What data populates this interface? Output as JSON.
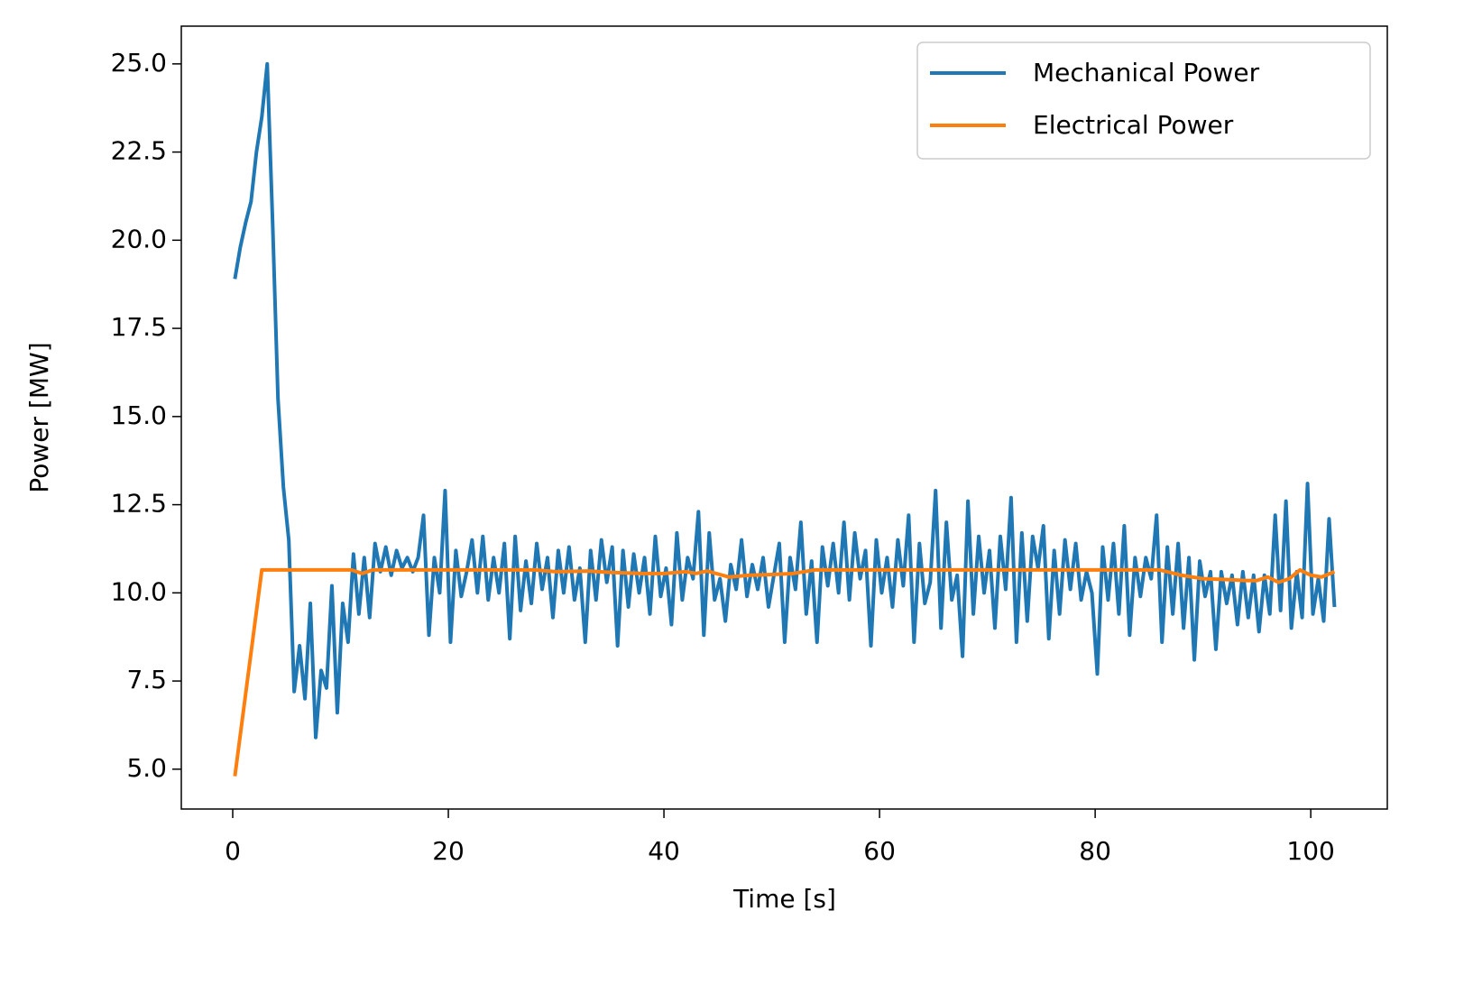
{
  "chart_data": {
    "type": "line",
    "x_label": "Time [s]",
    "y_label": "Power [MW]",
    "xlim": [
      -4.77,
      107.1
    ],
    "ylim": [
      3.87,
      26.07
    ],
    "xticks": [
      0,
      20,
      40,
      60,
      80,
      100
    ],
    "yticks": [
      {
        "value": 5,
        "label": "5.0"
      },
      7.5,
      {
        "value": 10,
        "label": "10.0"
      },
      12.5,
      {
        "value": 15,
        "label": "15.0"
      },
      17.5,
      {
        "value": 20,
        "label": "20.0"
      },
      22.5,
      {
        "value": 25,
        "label": "25.0"
      }
    ],
    "legend": "upper right",
    "series": [
      {
        "name": "Mechanical Power",
        "color": "#1f77b4",
        "x": [
          0.2,
          0.7,
          1.2,
          1.7,
          2.2,
          2.7,
          3.2,
          3.7,
          4.2,
          4.7,
          5.2,
          5.7,
          6.2,
          6.7,
          7.2,
          7.7,
          8.2,
          8.7,
          9.2,
          9.7,
          10.2,
          10.7,
          11.2,
          11.7,
          12.2,
          12.7,
          13.2,
          13.7,
          14.2,
          14.7,
          15.2,
          15.7,
          16.2,
          16.7,
          17.2,
          17.7,
          18.2,
          18.7,
          19.2,
          19.7,
          20.2,
          20.7,
          21.2,
          21.7,
          22.2,
          22.7,
          23.2,
          23.7,
          24.2,
          24.7,
          25.2,
          25.7,
          26.2,
          26.7,
          27.2,
          27.7,
          28.2,
          28.7,
          29.2,
          29.7,
          30.2,
          30.7,
          31.2,
          31.7,
          32.2,
          32.7,
          33.2,
          33.7,
          34.2,
          34.7,
          35.2,
          35.7,
          36.2,
          36.7,
          37.2,
          37.7,
          38.2,
          38.7,
          39.2,
          39.7,
          40.2,
          40.7,
          41.2,
          41.7,
          42.2,
          42.7,
          43.2,
          43.7,
          44.2,
          44.7,
          45.2,
          45.7,
          46.2,
          46.7,
          47.2,
          47.7,
          48.2,
          48.7,
          49.2,
          49.7,
          50.2,
          50.7,
          51.2,
          51.7,
          52.2,
          52.7,
          53.2,
          53.7,
          54.2,
          54.7,
          55.2,
          55.7,
          56.2,
          56.7,
          57.2,
          57.7,
          58.2,
          58.7,
          59.2,
          59.7,
          60.2,
          60.7,
          61.2,
          61.7,
          62.2,
          62.7,
          63.2,
          63.7,
          64.2,
          64.7,
          65.2,
          65.7,
          66.2,
          66.7,
          67.2,
          67.7,
          68.2,
          68.7,
          69.2,
          69.7,
          70.2,
          70.7,
          71.2,
          71.7,
          72.2,
          72.7,
          73.2,
          73.7,
          74.2,
          74.7,
          75.2,
          75.7,
          76.2,
          76.7,
          77.2,
          77.7,
          78.2,
          78.7,
          79.2,
          79.7,
          80.2,
          80.7,
          81.2,
          81.7,
          82.2,
          82.7,
          83.2,
          83.7,
          84.2,
          84.7,
          85.2,
          85.7,
          86.2,
          86.7,
          87.2,
          87.7,
          88.2,
          88.7,
          89.2,
          89.7,
          90.2,
          90.7,
          91.2,
          91.7,
          92.2,
          92.7,
          93.2,
          93.7,
          94.2,
          94.7,
          95.2,
          95.7,
          96.2,
          96.7,
          97.2,
          97.7,
          98.2,
          98.7,
          99.2,
          99.7,
          100.2,
          100.7,
          101.2,
          101.7,
          102.2
        ],
        "values": [
          18.9,
          19.8,
          20.5,
          21.1,
          22.5,
          23.5,
          25.0,
          20.5,
          15.5,
          13.0,
          11.5,
          7.2,
          8.5,
          7.0,
          9.7,
          5.9,
          7.8,
          7.3,
          10.2,
          6.6,
          9.7,
          8.6,
          11.1,
          9.4,
          11.0,
          9.3,
          11.4,
          10.6,
          11.3,
          10.5,
          11.2,
          10.7,
          11.0,
          10.6,
          11.0,
          12.2,
          8.8,
          11.0,
          10.0,
          12.9,
          8.6,
          11.2,
          9.9,
          10.6,
          11.5,
          10.0,
          11.6,
          9.8,
          11.0,
          10.0,
          11.4,
          8.7,
          11.6,
          9.5,
          10.9,
          9.7,
          11.4,
          10.1,
          11.0,
          9.3,
          11.2,
          10.0,
          11.3,
          9.8,
          10.7,
          8.6,
          11.2,
          9.8,
          11.5,
          10.3,
          11.3,
          8.5,
          11.2,
          9.6,
          11.1,
          10.0,
          11.0,
          9.4,
          11.6,
          9.9,
          10.7,
          9.1,
          11.7,
          9.8,
          11.0,
          10.4,
          12.3,
          8.8,
          11.7,
          9.8,
          10.4,
          9.2,
          10.8,
          10.1,
          11.5,
          9.9,
          10.8,
          10.1,
          11.0,
          9.6,
          10.5,
          11.4,
          8.6,
          11.0,
          10.1,
          12.0,
          9.4,
          10.9,
          8.6,
          11.3,
          10.2,
          11.4,
          10.0,
          12.0,
          9.8,
          11.7,
          10.4,
          11.2,
          8.5,
          11.5,
          10.0,
          11.0,
          9.6,
          11.5,
          10.2,
          12.2,
          8.6,
          11.4,
          9.7,
          10.3,
          12.9,
          9.0,
          12.0,
          9.8,
          10.5,
          8.2,
          12.6,
          9.4,
          11.6,
          10.0,
          11.2,
          9.0,
          11.6,
          10.1,
          12.7,
          8.6,
          11.7,
          9.2,
          11.6,
          10.7,
          11.9,
          8.7,
          11.2,
          9.4,
          11.5,
          10.1,
          11.4,
          9.8,
          10.6,
          10.0,
          7.7,
          11.3,
          9.8,
          11.4,
          9.4,
          11.9,
          8.8,
          11.0,
          9.9,
          11.0,
          10.4,
          12.2,
          8.6,
          11.3,
          9.4,
          11.4,
          9.0,
          11.0,
          8.1,
          10.9,
          9.9,
          10.6,
          8.4,
          10.6,
          9.7,
          10.5,
          9.1,
          10.6,
          9.3,
          10.5,
          8.9,
          10.5,
          9.4,
          12.2,
          9.5,
          12.6,
          9.0,
          10.6,
          9.3,
          13.1,
          9.4,
          10.4,
          9.2,
          12.1,
          9.6
        ]
      },
      {
        "name": "Electrical Power",
        "color": "#ff7f0e",
        "x": [
          0.2,
          2.7,
          11.0,
          12.0,
          13.0,
          28.0,
          30.0,
          33.0,
          35.0,
          38.0,
          40.0,
          42.0,
          43.0,
          44.0,
          46.0,
          48.0,
          50.0,
          52.0,
          54.0,
          86.0,
          88.0,
          90.0,
          92.0,
          94.0,
          95.0,
          96.0,
          97.0,
          98.0,
          99.0,
          100.0,
          101.0,
          102.2
        ],
        "values": [
          4.8,
          10.65,
          10.65,
          10.55,
          10.65,
          10.65,
          10.6,
          10.62,
          10.58,
          10.55,
          10.55,
          10.6,
          10.55,
          10.62,
          10.45,
          10.5,
          10.52,
          10.55,
          10.65,
          10.65,
          10.5,
          10.4,
          10.38,
          10.35,
          10.35,
          10.45,
          10.3,
          10.4,
          10.65,
          10.5,
          10.45,
          10.6
        ]
      }
    ]
  }
}
